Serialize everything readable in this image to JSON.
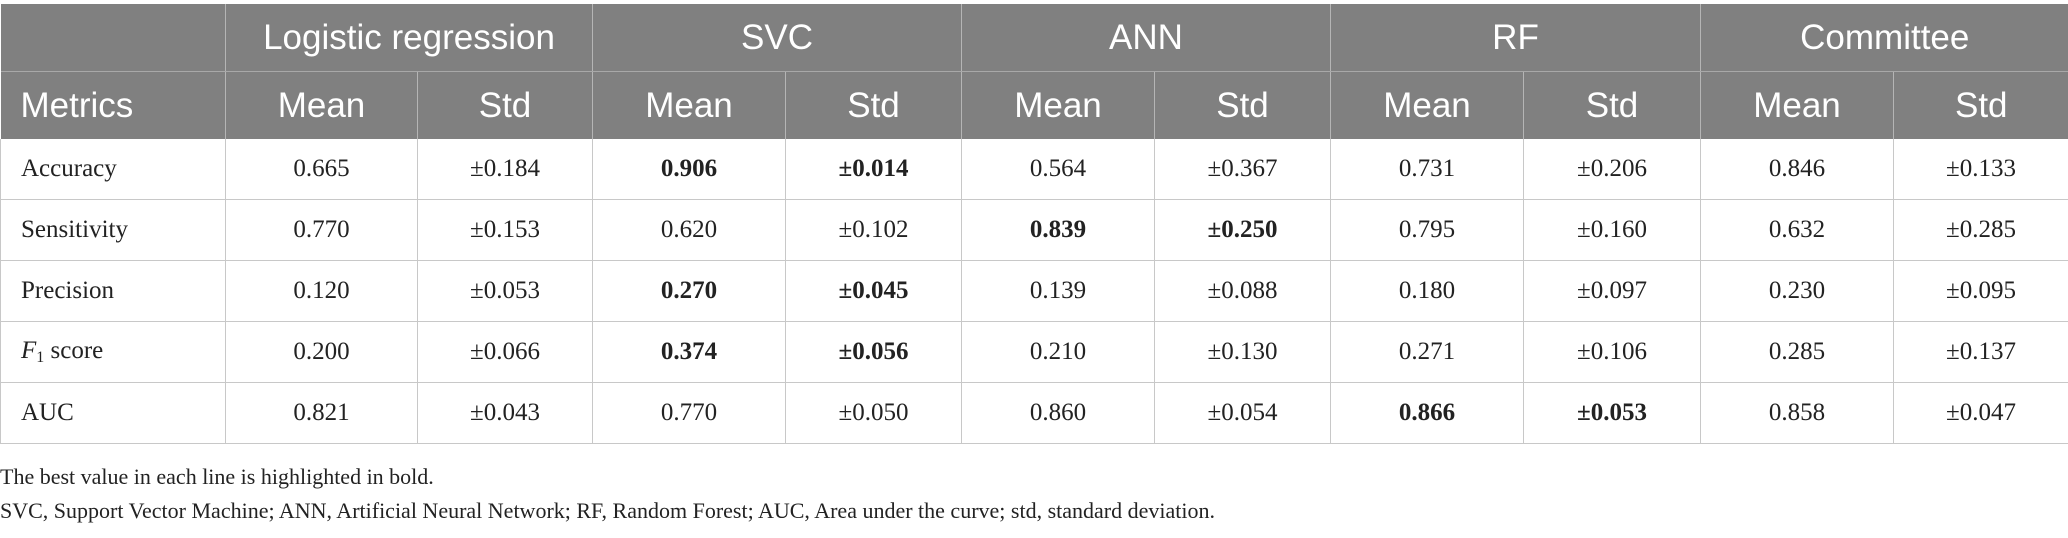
{
  "table": {
    "groups": [
      "Logistic regression",
      "SVC",
      "ANN",
      "RF",
      "Committee"
    ],
    "metrics_header": "Metrics",
    "sub_headers": [
      "Mean",
      "Std",
      "Mean",
      "Std",
      "Mean",
      "Std",
      "Mean",
      "Std",
      "Mean",
      "Std"
    ],
    "rows": [
      {
        "metric": "Accuracy",
        "cells": [
          "0.665",
          "±0.184",
          "0.906",
          "±0.014",
          "0.564",
          "±0.367",
          "0.731",
          "±0.206",
          "0.846",
          "±0.133"
        ],
        "bold": [
          false,
          false,
          true,
          true,
          false,
          false,
          false,
          false,
          false,
          false
        ]
      },
      {
        "metric": "Sensitivity",
        "cells": [
          "0.770",
          "±0.153",
          "0.620",
          "±0.102",
          "0.839",
          "±0.250",
          "0.795",
          "±0.160",
          "0.632",
          "±0.285"
        ],
        "bold": [
          false,
          false,
          false,
          false,
          true,
          true,
          false,
          false,
          false,
          false
        ]
      },
      {
        "metric": "Precision",
        "cells": [
          "0.120",
          "±0.053",
          "0.270",
          "±0.045",
          "0.139",
          "±0.088",
          "0.180",
          "±0.097",
          "0.230",
          "±0.095"
        ],
        "bold": [
          false,
          false,
          true,
          true,
          false,
          false,
          false,
          false,
          false,
          false
        ]
      },
      {
        "metric": "score",
        "metric_prefix": "F",
        "metric_subscript": "1",
        "cells": [
          "0.200",
          "±0.066",
          "0.374",
          "±0.056",
          "0.210",
          "±0.130",
          "0.271",
          "±0.106",
          "0.285",
          "±0.137"
        ],
        "bold": [
          false,
          false,
          true,
          true,
          false,
          false,
          false,
          false,
          false,
          false
        ]
      },
      {
        "metric": "AUC",
        "cells": [
          "0.821",
          "±0.043",
          "0.770",
          "±0.050",
          "0.860",
          "±0.054",
          "0.866",
          "±0.053",
          "0.858",
          "±0.047"
        ],
        "bold": [
          false,
          false,
          false,
          false,
          false,
          false,
          true,
          true,
          false,
          false
        ]
      }
    ]
  },
  "footnotes": [
    "The best value in each line is highlighted in bold.",
    "SVC, Support Vector Machine; ANN, Artificial Neural Network; RF, Random Forest; AUC, Area under the curve; std, standard deviation."
  ]
}
